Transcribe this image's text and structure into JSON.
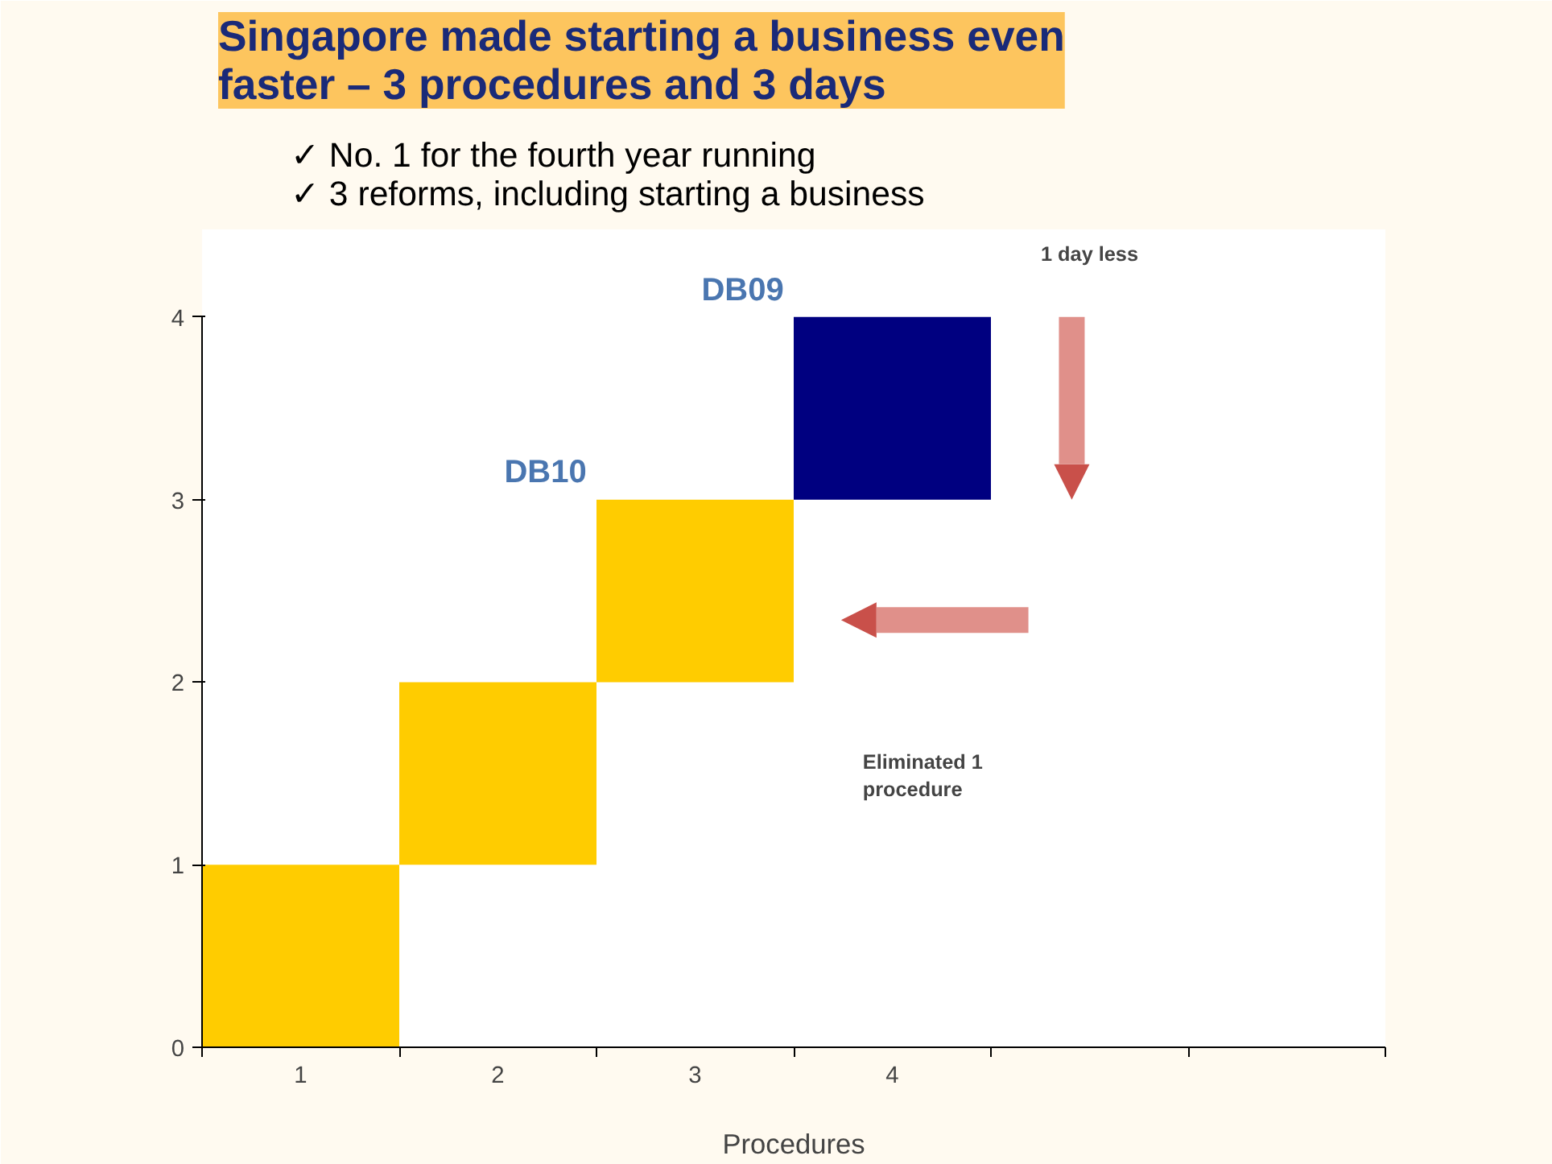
{
  "chart_data": {
    "type": "bar",
    "title": "Singapore made starting a business even faster – 3 procedures and 3 days",
    "subtitle": "✓   No. 1 for the fourth year running\n✓   3 reforms, including starting a business",
    "xlabel": "Procedures",
    "categories": [
      "1",
      "2",
      "3",
      "4",
      null,
      null
    ],
    "series": [
      {
        "name": "DB10",
        "color": "#ffcc00",
        "values": [
          1,
          1,
          1,
          null,
          null,
          null
        ],
        "base": [
          0,
          1,
          2,
          null,
          null,
          null
        ]
      },
      {
        "name": "DB09",
        "color": "#000080",
        "values": [
          null,
          null,
          null,
          1,
          null,
          null
        ],
        "base": [
          null,
          null,
          null,
          3,
          null,
          null
        ]
      }
    ],
    "ylim": [
      0,
      4
    ],
    "yticks": [
      0,
      1,
      2,
      3,
      4
    ],
    "grid": false,
    "legend": false,
    "annotations": [
      "1 day less",
      "Eliminated 1 procedure"
    ]
  }
}
